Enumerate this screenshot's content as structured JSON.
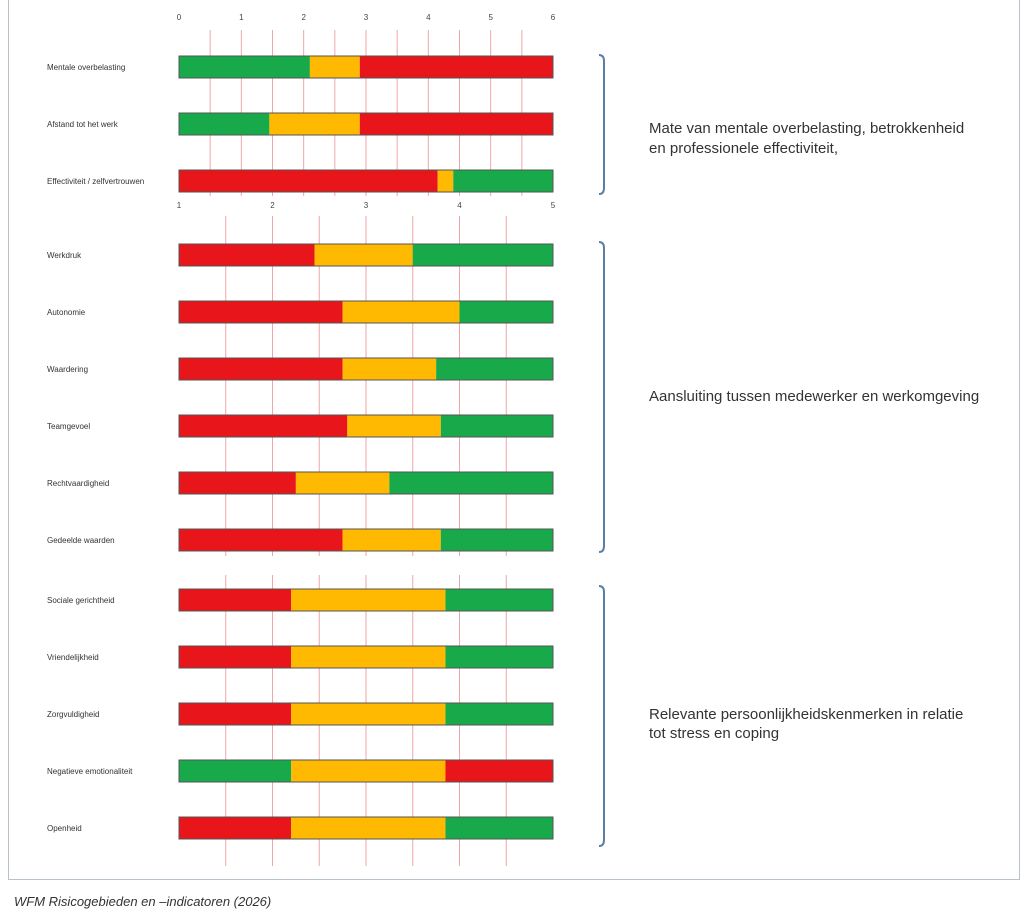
{
  "chart_data": {
    "type": "bar",
    "subtype": "stacked-horizontal",
    "colors": {
      "red": "#e8161b",
      "amber": "#ffb900",
      "green": "#18a94a"
    },
    "groups": [
      {
        "axis": {
          "min": 0,
          "max": 6,
          "ticks": [
            "0",
            "1",
            "2",
            "3",
            "4",
            "5",
            "6"
          ]
        },
        "caption": [
          "Mate van mentale overbelasting, betrokkenheid",
          "en professionele effectiviteit,"
        ],
        "rows": [
          {
            "label": "Mentale overbelasting",
            "segments": [
              {
                "color": "green",
                "end": 2.1
              },
              {
                "color": "amber",
                "end": 2.9
              },
              {
                "color": "red",
                "end": 6
              }
            ]
          },
          {
            "label": "Afstand tot het werk",
            "segments": [
              {
                "color": "green",
                "end": 1.45
              },
              {
                "color": "amber",
                "end": 2.9
              },
              {
                "color": "red",
                "end": 6
              }
            ]
          },
          {
            "label": "Effectiviteit / zelfvertrouwen",
            "segments": [
              {
                "color": "red",
                "end": 4.15
              },
              {
                "color": "amber",
                "end": 4.4
              },
              {
                "color": "green",
                "end": 6
              }
            ]
          }
        ]
      },
      {
        "axis": {
          "min": 1,
          "max": 5,
          "ticks": [
            "1",
            "2",
            "3",
            "4",
            "5"
          ]
        },
        "caption": [
          "Aansluiting tussen medewerker en werkomgeving"
        ],
        "rows": [
          {
            "label": "Werkdruk",
            "segments": [
              {
                "color": "red",
                "end": 2.45
              },
              {
                "color": "amber",
                "end": 3.5
              },
              {
                "color": "green",
                "end": 5
              }
            ]
          },
          {
            "label": "Autonomie",
            "segments": [
              {
                "color": "red",
                "end": 2.75
              },
              {
                "color": "amber",
                "end": 4.0
              },
              {
                "color": "green",
                "end": 5
              }
            ]
          },
          {
            "label": "Waardering",
            "segments": [
              {
                "color": "red",
                "end": 2.75
              },
              {
                "color": "amber",
                "end": 3.75
              },
              {
                "color": "green",
                "end": 5
              }
            ]
          },
          {
            "label": "Teamgevoel",
            "segments": [
              {
                "color": "red",
                "end": 2.8
              },
              {
                "color": "amber",
                "end": 3.8
              },
              {
                "color": "green",
                "end": 5
              }
            ]
          },
          {
            "label": "Rechtvaardigheid",
            "segments": [
              {
                "color": "red",
                "end": 2.25
              },
              {
                "color": "amber",
                "end": 3.25
              },
              {
                "color": "green",
                "end": 5
              }
            ]
          },
          {
            "label": "Gedeelde waarden",
            "segments": [
              {
                "color": "red",
                "end": 2.75
              },
              {
                "color": "amber",
                "end": 3.8
              },
              {
                "color": "green",
                "end": 5
              }
            ]
          }
        ]
      },
      {
        "axis": {
          "min": 1,
          "max": 5,
          "ticks": []
        },
        "caption": [
          "Relevante persoonlijkheidskenmerken in relatie",
          "tot stress en coping"
        ],
        "rows": [
          {
            "label": "Sociale gerichtheid",
            "segments": [
              {
                "color": "red",
                "end": 2.2
              },
              {
                "color": "amber",
                "end": 3.85
              },
              {
                "color": "green",
                "end": 5
              }
            ]
          },
          {
            "label": "Vriendelijkheid",
            "segments": [
              {
                "color": "red",
                "end": 2.2
              },
              {
                "color": "amber",
                "end": 3.85
              },
              {
                "color": "green",
                "end": 5
              }
            ]
          },
          {
            "label": "Zorgvuldigheid",
            "segments": [
              {
                "color": "red",
                "end": 2.2
              },
              {
                "color": "amber",
                "end": 3.85
              },
              {
                "color": "green",
                "end": 5
              }
            ]
          },
          {
            "label": "Negatieve emotionaliteit",
            "segments": [
              {
                "color": "green",
                "end": 2.2
              },
              {
                "color": "amber",
                "end": 3.85
              },
              {
                "color": "red",
                "end": 5
              }
            ]
          },
          {
            "label": "Openheid",
            "segments": [
              {
                "color": "red",
                "end": 2.2
              },
              {
                "color": "amber",
                "end": 3.85
              },
              {
                "color": "green",
                "end": 5
              }
            ]
          }
        ]
      }
    ]
  },
  "caption": "WFM Risicogebieden en –indicatoren (2026)"
}
